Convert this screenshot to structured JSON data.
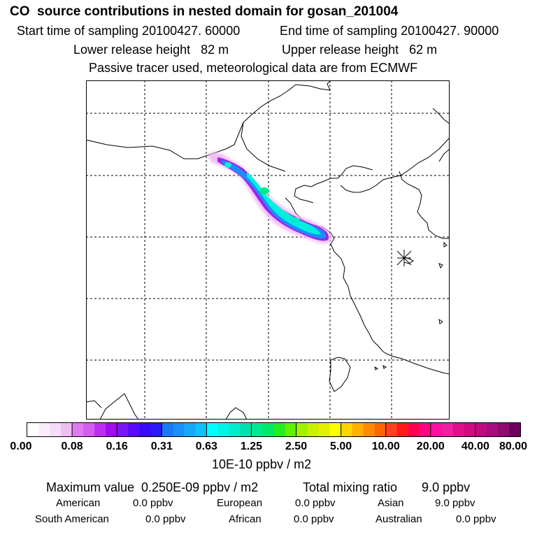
{
  "header": {
    "title": "CO  source contributions in nested domain for gosan_201004",
    "start_label": "Start time of sampling 20100427. 60000",
    "end_label": "End time of sampling 20100427. 90000",
    "lower_label": "Lower release height   82 m",
    "upper_label": "Upper release height   62 m",
    "note": "Passive tracer used, meteorological data are from ECMWF"
  },
  "chart_data": {
    "type": "heatmap",
    "title": "CO  source contributions in nested domain for gosan_201004",
    "units_label": "10E-10 ppbv / m2",
    "color_scale": {
      "tick_labels": [
        "0.00",
        "0.08",
        "0.16",
        "0.31",
        "0.63",
        "1.25",
        "2.50",
        "5.00",
        "10.00",
        "20.00",
        "40.00",
        "80.00"
      ],
      "colors": [
        "#ffffff",
        "#fbeefc",
        "#f5dcf8",
        "#eebff5",
        "#e07af0",
        "#d55cf0",
        "#bd2ef0",
        "#a40af0",
        "#7a14f5",
        "#5a0afa",
        "#3a0afa",
        "#2a1af5",
        "#1a78fa",
        "#1a8ffa",
        "#14a8fa",
        "#0fc0fa",
        "#00ffff",
        "#00f5e6",
        "#00ebcc",
        "#00e1b0",
        "#00e890",
        "#00e868",
        "#22ee22",
        "#60f000",
        "#a0f000",
        "#c8f000",
        "#e4f000",
        "#ffff00",
        "#ffd400",
        "#ffb000",
        "#ff8c00",
        "#ff6600",
        "#ff4020",
        "#ff1a1a",
        "#ff0050",
        "#ff0080",
        "#ff10a0",
        "#f020a0",
        "#e0108a",
        "#d00a80",
        "#c00a80",
        "#a80a80",
        "#900a70",
        "#700060"
      ]
    },
    "grid": true,
    "receptor_marker": "gosan",
    "plume": {
      "description": "narrow plume NW-SE over northern China to coast",
      "max_value": "0.250E-09",
      "levels": [
        "0.16",
        "0.31",
        "0.63",
        "1.25"
      ]
    }
  },
  "stats": {
    "max_label": "Maximum value  0.250E-09 ppbv / m2",
    "total_label": "Total mixing ratio       9.0 ppbv",
    "regions": [
      {
        "name": "American",
        "value": "0.0 ppbv"
      },
      {
        "name": "European",
        "value": "0.0 ppbv"
      },
      {
        "name": "Asian",
        "value": "9.0 ppbv"
      },
      {
        "name": "South American",
        "value": "0.0 ppbv"
      },
      {
        "name": "African",
        "value": "0.0 ppbv"
      },
      {
        "name": "Australian",
        "value": "0.0 ppbv"
      }
    ]
  }
}
